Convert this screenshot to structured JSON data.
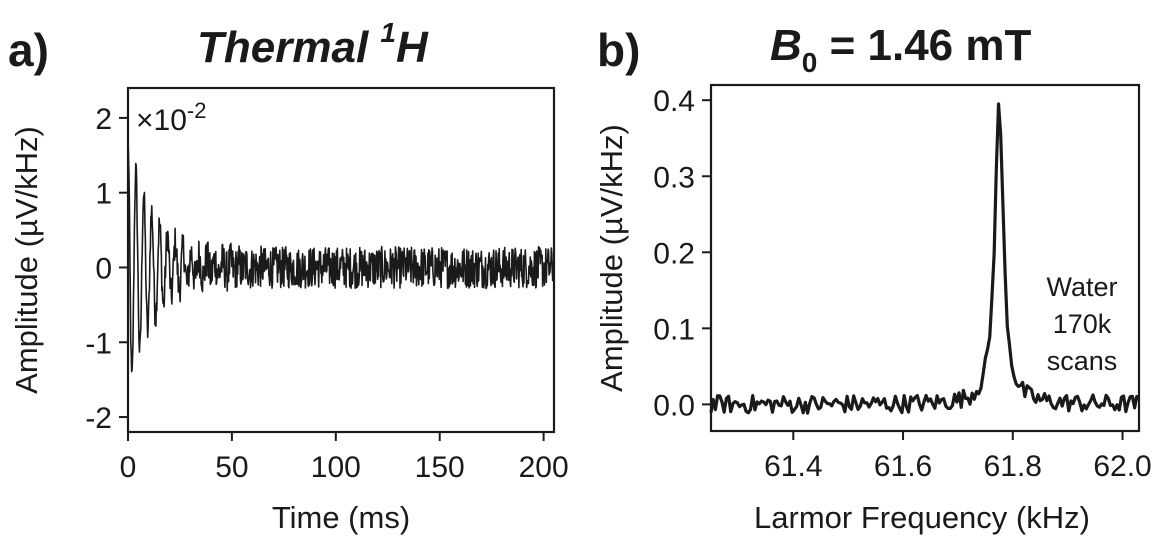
{
  "chart_data": [
    {
      "type": "line",
      "panel": "a)",
      "title_main": "Thermal ",
      "title_sup": "1",
      "title_tail": "H",
      "xlabel": "Time (ms)",
      "ylabel": "Amplitude (µV/kHz)",
      "multiplier_prefix": "×10",
      "multiplier_exp": "-2",
      "xlim": [
        0,
        205
      ],
      "ylim": [
        -2.2,
        2.4
      ],
      "xticks": [
        0,
        50,
        100,
        150,
        200
      ],
      "xtick_labels": [
        "0",
        "50",
        "100",
        "150",
        "200"
      ],
      "yticks": [
        -2,
        -1,
        0,
        1,
        2
      ],
      "ytick_labels": [
        "-2",
        "-1",
        "0",
        "1",
        "2"
      ],
      "grid": false,
      "series": [
        {
          "color": "#1a1a1a",
          "signal": {
            "initial_amplitude": 1.7,
            "decay_time_constant_ms": 14,
            "oscillation_period_ms": 3.8,
            "noise_amplitude": 0.28,
            "x_start": 0,
            "x_end": 205
          }
        }
      ]
    },
    {
      "type": "line",
      "panel": "b)",
      "title_b": "B",
      "title_sub": "0",
      "title_rest": " = 1.46 mT",
      "xlabel": "Larmor Frequency (kHz)",
      "ylabel": "Amplitude (µV/kHz)",
      "xlim": [
        61.25,
        62.03
      ],
      "ylim": [
        -0.035,
        0.42
      ],
      "xticks": [
        61.4,
        61.6,
        61.8,
        62.0
      ],
      "xtick_labels": [
        "61.4",
        "61.6",
        "61.8",
        "62.0"
      ],
      "yticks": [
        0.0,
        0.1,
        0.2,
        0.3,
        0.4
      ],
      "ytick_labels": [
        "0.0",
        "0.1",
        "0.2",
        "0.3",
        "0.4"
      ],
      "grid": false,
      "annotation": [
        "Water",
        "170k",
        "scans"
      ],
      "series": [
        {
          "color": "#1a1a1a",
          "peak": {
            "center_khz": 61.775,
            "height": 0.395,
            "half_width_khz": 0.012
          },
          "noise_amplitude": 0.012,
          "x_start": 61.25,
          "x_end": 62.03
        }
      ]
    }
  ]
}
